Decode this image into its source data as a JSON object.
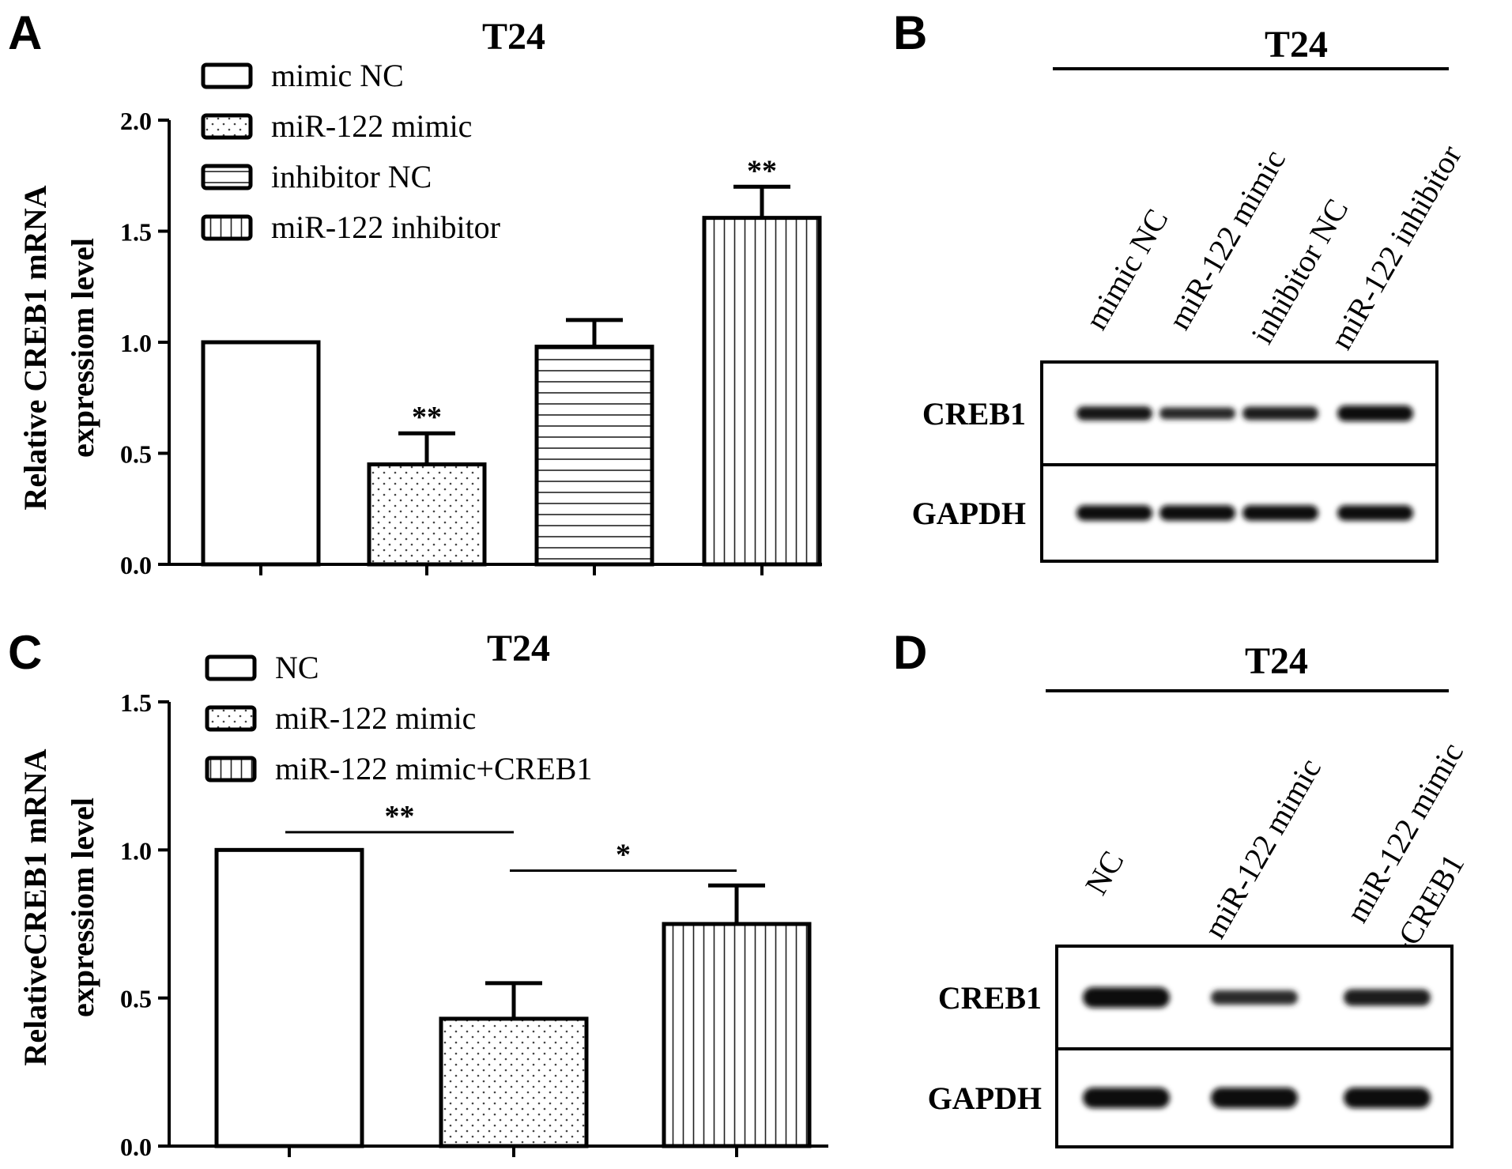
{
  "panels": {
    "A": {
      "letter": "A",
      "title": "T24",
      "ylabel_line1": "Relative CREB1 mRNA",
      "ylabel_line2": "expressiom level",
      "legend": [
        "mimic NC",
        "miR-122 mimic",
        "inhibitor NC",
        "miR-122 inhibitor"
      ]
    },
    "B": {
      "letter": "B",
      "title": "T24",
      "lanes": [
        "mimic NC",
        "miR-122 mimic",
        "inhibitor NC",
        "miR-122 inhibitor"
      ],
      "rows": [
        "CREB1",
        "GAPDH"
      ],
      "band_intensity": {
        "CREB1": [
          0.8,
          0.55,
          0.72,
          1.0
        ],
        "GAPDH": [
          0.95,
          0.95,
          0.95,
          0.95
        ]
      }
    },
    "C": {
      "letter": "C",
      "title": "T24",
      "ylabel_line1": "RelativeCREB1 mRNA",
      "ylabel_line2": "expressiom level",
      "legend": [
        "NC",
        "miR-122 mimic",
        "miR-122 mimic+CREB1"
      ]
    },
    "D": {
      "letter": "D",
      "title": "T24",
      "lanes": [
        "NC",
        "miR-122 mimic",
        "miR-122 mimic",
        "+CREB1"
      ],
      "rows": [
        "CREB1",
        "GAPDH"
      ],
      "band_intensity": {
        "CREB1": [
          1.0,
          0.45,
          0.65
        ],
        "GAPDH": [
          1.0,
          1.0,
          1.0
        ]
      }
    }
  },
  "chart_data": [
    {
      "panel": "A",
      "type": "bar",
      "title": "T24",
      "ylabel": "Relative CREB1 mRNA expressiom level",
      "ylim": [
        0,
        2.0
      ],
      "yticks": [
        "0.0",
        "0.5",
        "1.0",
        "1.5",
        "2.0"
      ],
      "categories": [
        "mimic NC",
        "miR-122 mimic",
        "inhibitor NC",
        "miR-122 inhibitor"
      ],
      "values": [
        1.0,
        0.45,
        0.98,
        1.56
      ],
      "errors": [
        0,
        0.14,
        0.12,
        0.14
      ],
      "patterns": [
        "blank",
        "dots",
        "hlines",
        "vlines"
      ],
      "significance": [
        "",
        "**",
        "",
        "**"
      ]
    },
    {
      "panel": "C",
      "type": "bar",
      "title": "T24",
      "ylabel": "RelativeCREB1 mRNA expressiom level",
      "ylim": [
        0,
        1.5
      ],
      "yticks": [
        "0.0",
        "0.5",
        "1.0",
        "1.5"
      ],
      "categories": [
        "NC",
        "miR-122 mimic",
        "miR-122 mimic+CREB1"
      ],
      "values": [
        1.0,
        0.43,
        0.75
      ],
      "errors": [
        0,
        0.12,
        0.13
      ],
      "patterns": [
        "blank",
        "dots",
        "vlines"
      ],
      "comparisons": [
        {
          "from": 0,
          "to": 1,
          "label": "**",
          "y": 1.06
        },
        {
          "from": 1,
          "to": 2,
          "label": "*",
          "y": 0.93
        }
      ]
    }
  ]
}
